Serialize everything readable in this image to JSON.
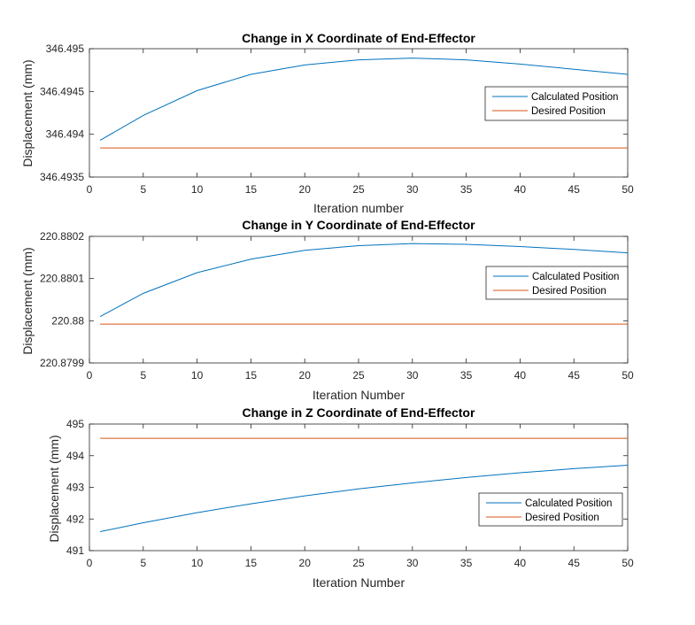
{
  "colors": {
    "calculated": "#0072BD",
    "desired": "#D95319",
    "axis": "#262626"
  },
  "chart_data": [
    {
      "type": "line",
      "title": "Change in X Coordinate of End-Effector",
      "xlabel": "Iteration number",
      "ylabel": "Displacement (mm)",
      "xlim": [
        1,
        50
      ],
      "ylim": [
        346.4935,
        346.495
      ],
      "xticks": [
        0,
        5,
        10,
        15,
        20,
        25,
        30,
        35,
        40,
        45,
        50
      ],
      "xtick_labels": [
        "0",
        "5",
        "10",
        "15",
        "20",
        "25",
        "30",
        "35",
        "40",
        "45",
        "50"
      ],
      "yticks": [
        346.4935,
        346.494,
        346.4945,
        346.495
      ],
      "ytick_labels": [
        "346.4935",
        "346.494",
        "346.4945",
        "346.495"
      ],
      "legend": "right",
      "series": [
        {
          "name": "Calculated Position",
          "x": [
            1,
            5,
            10,
            15,
            20,
            25,
            30,
            35,
            40,
            45,
            50
          ],
          "y": [
            346.49393,
            346.49422,
            346.49451,
            346.4947,
            346.49481,
            346.49487,
            346.49489,
            346.49487,
            346.49482,
            346.49476,
            346.4947
          ]
        },
        {
          "name": "Desired Position",
          "x": [
            1,
            50
          ],
          "y": [
            346.49384,
            346.49384
          ]
        }
      ]
    },
    {
      "type": "line",
      "title": "Change in Y Coordinate of End-Effector",
      "xlabel": "Iteration Number",
      "ylabel": "Displacement (mm)",
      "xlim": [
        1,
        50
      ],
      "ylim": [
        220.8799,
        220.8802
      ],
      "xticks": [
        0,
        5,
        10,
        15,
        20,
        25,
        30,
        35,
        40,
        45,
        50
      ],
      "xtick_labels": [
        "0",
        "5",
        "10",
        "15",
        "20",
        "25",
        "30",
        "35",
        "40",
        "45",
        "50"
      ],
      "yticks": [
        220.8799,
        220.88,
        220.8801,
        220.8802
      ],
      "ytick_labels": [
        "220.8799",
        "220.88",
        "220.8801",
        "220.8802"
      ],
      "legend": "right",
      "series": [
        {
          "name": "Calculated Position",
          "x": [
            1,
            5,
            10,
            15,
            20,
            25,
            30,
            35,
            40,
            45,
            50
          ],
          "y": [
            220.88001,
            220.880065,
            220.880114,
            220.880146,
            220.880167,
            220.880178,
            220.880183,
            220.880181,
            220.880176,
            220.880169,
            220.880161
          ]
        },
        {
          "name": "Desired Position",
          "x": [
            1,
            50
          ],
          "y": [
            220.879992,
            220.879992
          ]
        }
      ]
    },
    {
      "type": "line",
      "title": "Change in Z Coordinate of End-Effector",
      "xlabel": "Iteration Number",
      "ylabel": "Displacement (mm)",
      "xlim": [
        1,
        50
      ],
      "ylim": [
        491,
        495
      ],
      "xticks": [
        0,
        5,
        10,
        15,
        20,
        25,
        30,
        35,
        40,
        45,
        50
      ],
      "xtick_labels": [
        "0",
        "5",
        "10",
        "15",
        "20",
        "25",
        "30",
        "35",
        "40",
        "45",
        "50"
      ],
      "yticks": [
        491,
        492,
        493,
        494,
        495
      ],
      "ytick_labels": [
        "491",
        "492",
        "493",
        "494",
        "495"
      ],
      "legend": "right",
      "series": [
        {
          "name": "Calculated Position",
          "x": [
            1,
            5,
            10,
            15,
            20,
            25,
            30,
            35,
            40,
            45,
            50
          ],
          "y": [
            491.6,
            491.88,
            492.2,
            492.48,
            492.73,
            492.95,
            493.14,
            493.31,
            493.46,
            493.59,
            493.7
          ]
        },
        {
          "name": "Desired Position",
          "x": [
            1,
            50
          ],
          "y": [
            494.55,
            494.55
          ]
        }
      ]
    }
  ]
}
